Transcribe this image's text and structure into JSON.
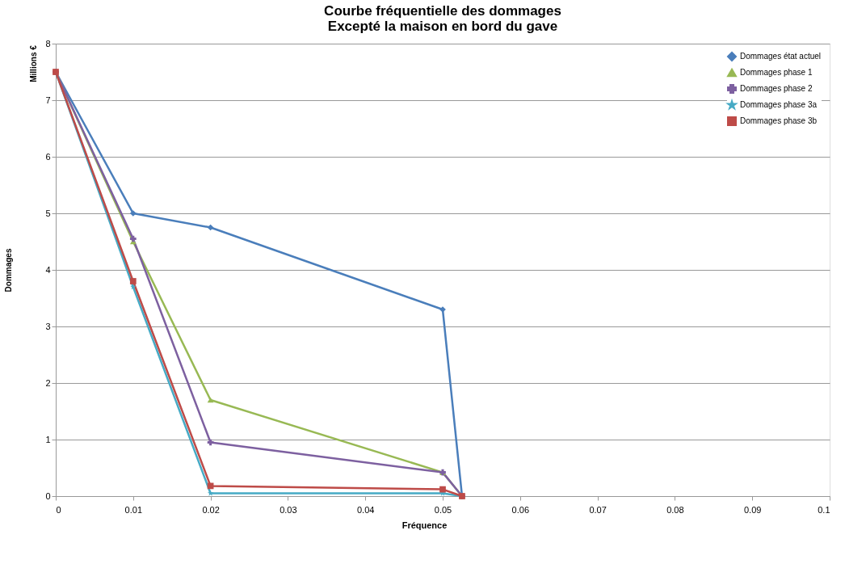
{
  "chart_data": {
    "type": "line",
    "title": [
      "Courbe fréquentielle des dommages",
      "Excepté la maison en bord du gave"
    ],
    "xlabel": "Fréquence",
    "ylabel": "Dommages",
    "annotations": [
      "Millions €"
    ],
    "x": [
      0,
      0.01,
      0.02,
      0.05,
      0.0525
    ],
    "series": [
      {
        "name": "Dommages état actuel",
        "color": "#4a7ebb",
        "marker": "diamond",
        "values": [
          7.5,
          5.0,
          4.75,
          3.3,
          0
        ]
      },
      {
        "name": "Dommages phase 1",
        "color": "#98b954",
        "marker": "triangle",
        "values": [
          7.5,
          4.5,
          1.7,
          0.42,
          0
        ]
      },
      {
        "name": "Dommages phase 2",
        "color": "#7d60a0",
        "marker": "cross",
        "values": [
          7.5,
          4.55,
          0.95,
          0.42,
          0
        ]
      },
      {
        "name": "Dommages phase 3a",
        "color": "#46aac5",
        "marker": "star",
        "values": [
          7.5,
          3.7,
          0.05,
          0.05,
          0
        ]
      },
      {
        "name": "Dommages phase 3b",
        "color": "#be4b48",
        "marker": "square",
        "values": [
          7.5,
          3.8,
          0.18,
          0.12,
          0
        ]
      }
    ],
    "xlim": [
      0,
      0.1
    ],
    "xticks": [
      0,
      0.01,
      0.02,
      0.03,
      0.04,
      0.05,
      0.06,
      0.07,
      0.08,
      0.09,
      0.1
    ],
    "ylim": [
      0,
      8
    ],
    "yticks": [
      0,
      1,
      2,
      3,
      4,
      5,
      6,
      7,
      8
    ],
    "grid": "y",
    "legend": "top right",
    "line_style": "solid"
  }
}
